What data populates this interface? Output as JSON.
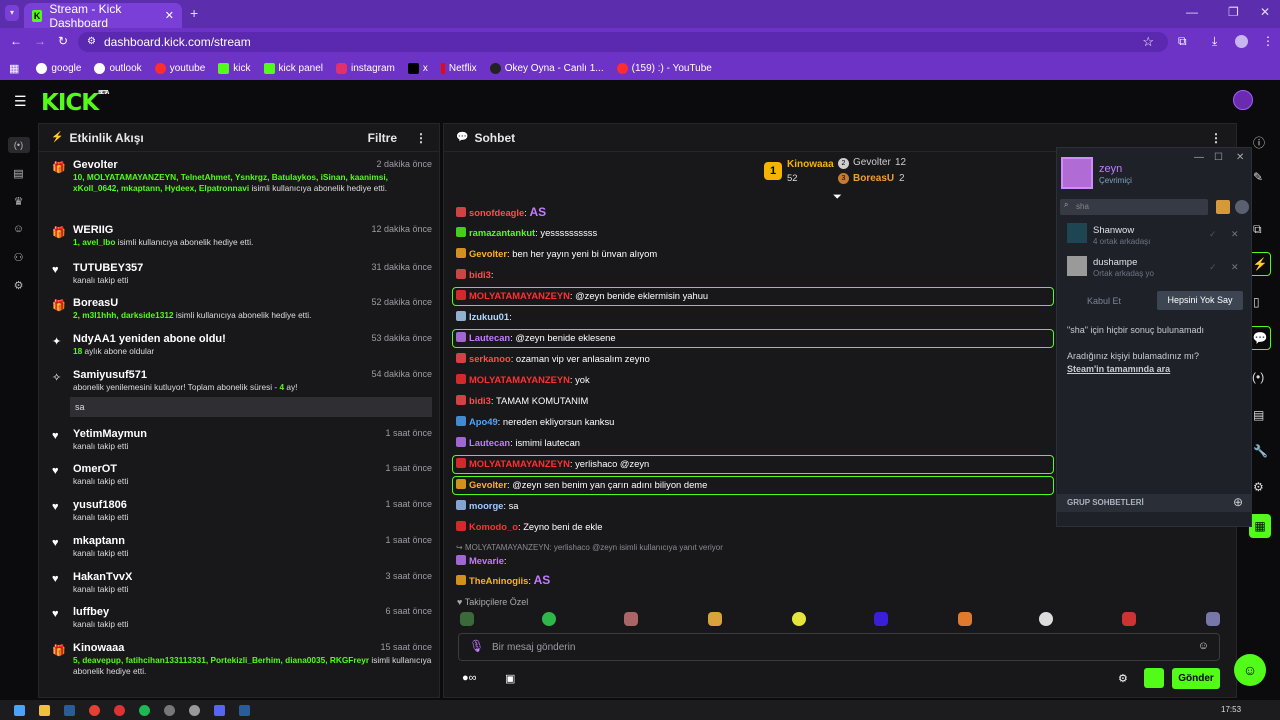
{
  "browser": {
    "tab_title": "Stream - Kick Dashboard",
    "tab_close": "✕",
    "new_tab": "+",
    "url": "dashboard.kick.com/stream",
    "bookmarks": [
      "google",
      "outlook",
      "youtube",
      "kick",
      "kick panel",
      "instagram",
      "x",
      "Netflix",
      "Okey Oyna - Canlı 1...",
      "(159) :) - YouTube"
    ]
  },
  "kick": {
    "logo": "KICK",
    "logo_beta": "BETA"
  },
  "activity": {
    "title": "Etkinlik Akışı",
    "filter_label": "Filtre",
    "items": [
      {
        "icon": "gift-icon",
        "name": "Gevolter",
        "time": "2 dakika önce",
        "count": "10,",
        "users": "MOLYATAMAYANZEYN, TelnetAhmet, Ysnkrgz, Batulaykos, iSinan, kaanimsi, xKoll_0642, mkaptann, Hydeex, Elpatronnavi",
        "text": "isimli kullanıcıya abonelik hediye etti."
      },
      {
        "icon": "gift-icon",
        "name": "WERIIG",
        "time": "12 dakika önce",
        "count": "1,",
        "users": "avel_lbo",
        "text": "isimli kullanıcıya abonelik hediye etti."
      },
      {
        "icon": "heart-icon",
        "name": "TUTUBEY357",
        "time": "31 dakika önce",
        "text": "kanalı takip etti"
      },
      {
        "icon": "gift-icon",
        "name": "BoreasU",
        "time": "52 dakika önce",
        "count": "2,",
        "users": "m3l1hhh, darkside1312",
        "text": "isimli kullanıcıya abonelik hediye etti."
      },
      {
        "icon": "star-icon",
        "name": "NdyAA1 yeniden abone oldu!",
        "time": "53 dakika önce",
        "count": "18",
        "text": "aylık abone oldular"
      },
      {
        "icon": "sparkle-icon",
        "name": "Samiyusuf571",
        "time": "54 dakika önce",
        "text": "abonelik yenilemesini kutluyor! Toplam abonelik süresi -",
        "months": "4",
        "months_suffix": "ay!",
        "message": "sa"
      },
      {
        "icon": "heart-icon",
        "name": "YetimMaymun",
        "time": "1 saat önce",
        "text": "kanalı takip etti"
      },
      {
        "icon": "heart-icon",
        "name": "OmerOT",
        "time": "1 saat önce",
        "text": "kanalı takip etti"
      },
      {
        "icon": "heart-icon",
        "name": "yusuf1806",
        "time": "1 saat önce",
        "text": "kanalı takip etti"
      },
      {
        "icon": "heart-icon",
        "name": "mkaptann",
        "time": "1 saat önce",
        "text": "kanalı takip etti"
      },
      {
        "icon": "heart-icon",
        "name": "HakanTvvX",
        "time": "3 saat önce",
        "text": "kanalı takip etti"
      },
      {
        "icon": "heart-icon",
        "name": "luffbey",
        "time": "6 saat önce",
        "text": "kanalı takip etti"
      },
      {
        "icon": "gift-icon",
        "name": "Kinowaaa",
        "time": "15 saat önce",
        "count": "5,",
        "users": "deavepup, fatihcihan133113331, Portekizli_Berhim, diana0035, RKGFreyr",
        "text": "isimli kullanıcıya abonelik hediye etti."
      }
    ]
  },
  "chat": {
    "title": "Sohbet",
    "leaderboard": [
      {
        "rank": "1",
        "name": "Kinowaaa",
        "count": "52"
      },
      {
        "rank": "2",
        "name": "Gevolter",
        "count": "12"
      },
      {
        "rank": "3",
        "name": "BoreasU",
        "count": "2"
      }
    ],
    "messages": [
      {
        "user": "sonofdeagle",
        "color": "#ff4d4d",
        "text": "",
        "emote": "AS"
      },
      {
        "user": "ramazantankut",
        "color": "#53fc18",
        "text": "yessssssssss"
      },
      {
        "user": "Gevolter",
        "color": "#ffb020",
        "text": "ben her yayın yeni bi ünvan alıyom"
      },
      {
        "user": "bidi3",
        "color": "#ff4d4d",
        "text": ""
      },
      {
        "user": "MOLYATAMAYANZEYN",
        "color": "#ff3030",
        "text": "@zeyn benide eklermisin yahuu",
        "highlight": true
      },
      {
        "user": "Izukuu01",
        "color": "#b0d8ff",
        "text": ""
      },
      {
        "user": "Lautecan",
        "color": "#c47bff",
        "text": "@zeyn benide eklesene",
        "highlight": true
      },
      {
        "user": "serkanoo",
        "color": "#ff4d4d",
        "text": "ozaman vip ver anlasalım zeyno"
      },
      {
        "user": "MOLYATAMAYANZEYN",
        "color": "#ff3030",
        "text": "yok"
      },
      {
        "user": "bidi3",
        "color": "#ff4d4d",
        "text": "TAMAM KOMUTANIM"
      },
      {
        "user": "Apo49",
        "color": "#4da6ff",
        "text": "nereden ekliyorsun kanksu"
      },
      {
        "user": "Lautecan",
        "color": "#c47bff",
        "text": "ismimi lautecan"
      },
      {
        "user": "MOLYATAMAYANZEYN",
        "color": "#ff3030",
        "text": "yerlishaco @zeyn",
        "highlight": true
      },
      {
        "user": "Gevolter",
        "color": "#ffb020",
        "text": "@zeyn sen benim yan çarın adını biliyon deme",
        "highlight": true
      },
      {
        "user": "moorge",
        "color": "#9ecbff",
        "text": "sa"
      },
      {
        "user": "Komodo_o",
        "color": "#ff3030",
        "text": "Zeyno beni de ekle"
      },
      {
        "reply": "MOLYATAMAYANZEYN: yerlishaco @zeyn isimli kullanıcıya yanıt veriyor"
      },
      {
        "user": "Mevarie",
        "color": "#c47bff",
        "text": ""
      },
      {
        "user": "TheAninogiis",
        "color": "#ffb020",
        "text": "",
        "emote": "AS"
      }
    ],
    "followers_only": "Takipçilere Özel",
    "input_placeholder": "Bir mesaj gönderin",
    "send_label": "Gönder"
  },
  "steam": {
    "username": "zeyn",
    "status": "Çevrimiçi",
    "search_value": "sha",
    "results": [
      {
        "name": "Shanwow",
        "mutual": "4 ortak arkadaşı"
      },
      {
        "name": "dushampe",
        "mutual": "Ortak arkadaş yo"
      }
    ],
    "accept_label": "Kabul Et",
    "ignore_all_label": "Hepsini Yok Say",
    "no_results": "\"sha\" için hiçbir sonuç bulunamadı",
    "not_found_q": "Aradığınız kişiyi bulamadınız mı?",
    "search_all": "Steam'in tamamında ara",
    "group_chats": "GRUP SOHBETLERİ"
  },
  "clock": "17:53"
}
